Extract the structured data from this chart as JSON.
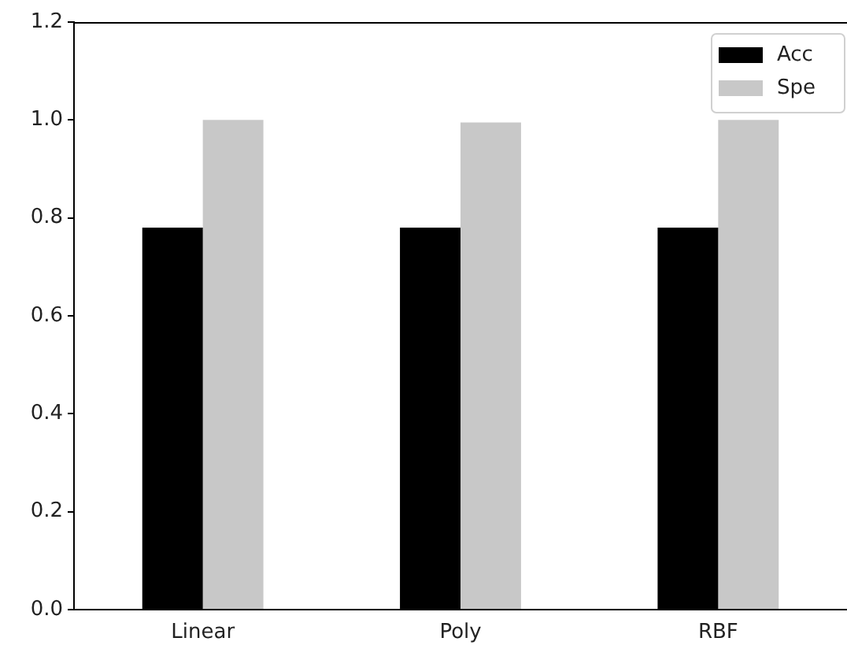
{
  "chart_data": {
    "type": "bar",
    "categories": [
      "Linear",
      "Poly",
      "RBF"
    ],
    "series": [
      {
        "name": "Acc",
        "color": "#000000",
        "values": [
          0.78,
          0.78,
          0.78
        ]
      },
      {
        "name": "Spe",
        "color": "#c8c8c8",
        "values": [
          1.0,
          0.995,
          1.0
        ]
      }
    ],
    "ylim": [
      0,
      1.2
    ],
    "yticks": [
      {
        "value": 0,
        "label": "0.0"
      },
      {
        "value": 0.2,
        "label": "0.2"
      },
      {
        "value": 0.4,
        "label": "0.4"
      },
      {
        "value": 0.6,
        "label": "0.6"
      },
      {
        "value": 0.8,
        "label": "0.8"
      },
      {
        "value": 1.0,
        "label": "1.0"
      },
      {
        "value": 1.2,
        "label": "1.2"
      }
    ],
    "grid": false,
    "legend": "top right"
  }
}
